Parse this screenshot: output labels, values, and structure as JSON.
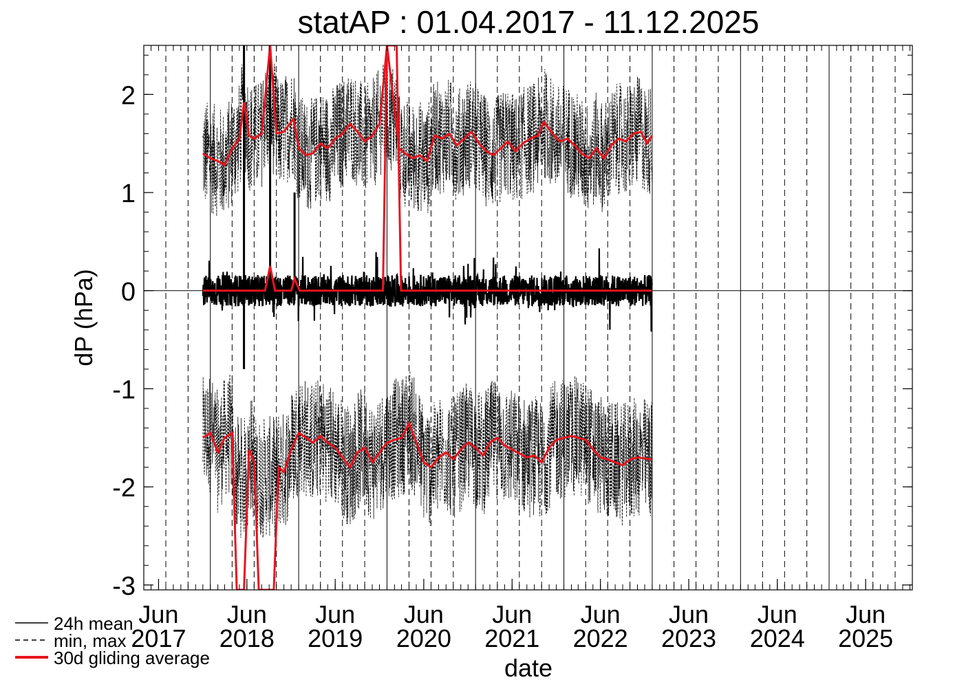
{
  "chart_data": {
    "type": "line",
    "title": "statAP : 01.04.2017 - 11.12.2025",
    "xlabel": "date",
    "ylabel": "dP (hPa)",
    "xlim": [
      "2017-04-01",
      "2025-12-11"
    ],
    "ylim": [
      -3.05,
      2.5
    ],
    "yticks": [
      2,
      1,
      0,
      -1,
      -2,
      -3
    ],
    "xticks": [
      {
        "date": "2017-06-01",
        "month": "Jun",
        "year": "2017"
      },
      {
        "date": "2018-06-01",
        "month": "Jun",
        "year": "2018"
      },
      {
        "date": "2019-06-01",
        "month": "Jun",
        "year": "2019"
      },
      {
        "date": "2020-06-01",
        "month": "Jun",
        "year": "2020"
      },
      {
        "date": "2021-06-01",
        "month": "Jun",
        "year": "2021"
      },
      {
        "date": "2022-06-01",
        "month": "Jun",
        "year": "2022"
      },
      {
        "date": "2023-06-01",
        "month": "Jun",
        "year": "2023"
      },
      {
        "date": "2024-06-01",
        "month": "Jun",
        "year": "2024"
      },
      {
        "date": "2025-06-01",
        "month": "Jun",
        "year": "2025"
      }
    ],
    "grid": "vertical: solid at year boundaries, dashed at quarter boundaries",
    "legend_position": "bottom-left",
    "legend": [
      {
        "label": "24h mean",
        "style": "solid",
        "color": "#000000"
      },
      {
        "label": "min, max",
        "style": "dashed",
        "color": "#000000"
      },
      {
        "label": "30d gliding average",
        "style": "solid-thick",
        "color": "#e8141e"
      }
    ],
    "data_range": [
      "2017-12-01",
      "2022-12-31"
    ],
    "series": [
      {
        "label_ref": "30d gliding average (max)",
        "color": "#e8141e",
        "points": [
          [
            "2017-12-01",
            1.4
          ],
          [
            "2018-01-01",
            1.35
          ],
          [
            "2018-02-01",
            1.32
          ],
          [
            "2018-03-01",
            1.28
          ],
          [
            "2018-04-01",
            1.45
          ],
          [
            "2018-05-01",
            1.55
          ],
          [
            "2018-05-20",
            1.92
          ],
          [
            "2018-06-10",
            1.58
          ],
          [
            "2018-07-01",
            1.55
          ],
          [
            "2018-08-01",
            1.6
          ],
          [
            "2018-09-05",
            2.5
          ],
          [
            "2018-10-01",
            1.6
          ],
          [
            "2018-11-01",
            1.62
          ],
          [
            "2018-12-10",
            1.75
          ],
          [
            "2019-01-01",
            1.45
          ],
          [
            "2019-02-01",
            1.38
          ],
          [
            "2019-03-01",
            1.4
          ],
          [
            "2019-04-01",
            1.5
          ],
          [
            "2019-05-01",
            1.45
          ],
          [
            "2019-06-01",
            1.55
          ],
          [
            "2019-07-01",
            1.6
          ],
          [
            "2019-08-01",
            1.7
          ],
          [
            "2019-09-01",
            1.62
          ],
          [
            "2019-10-01",
            1.52
          ],
          [
            "2019-11-01",
            1.58
          ],
          [
            "2019-12-01",
            1.7
          ],
          [
            "2020-01-01",
            2.5
          ],
          [
            "2020-02-20",
            1.45
          ],
          [
            "2020-03-15",
            1.4
          ],
          [
            "2020-04-15",
            1.35
          ],
          [
            "2020-05-15",
            1.38
          ],
          [
            "2020-06-15",
            1.32
          ],
          [
            "2020-07-15",
            1.58
          ],
          [
            "2020-08-15",
            1.55
          ],
          [
            "2020-09-15",
            1.6
          ],
          [
            "2020-10-15",
            1.48
          ],
          [
            "2020-11-15",
            1.55
          ],
          [
            "2020-12-15",
            1.62
          ],
          [
            "2021-01-15",
            1.5
          ],
          [
            "2021-02-15",
            1.42
          ],
          [
            "2021-03-15",
            1.38
          ],
          [
            "2021-04-15",
            1.45
          ],
          [
            "2021-05-15",
            1.52
          ],
          [
            "2021-06-15",
            1.42
          ],
          [
            "2021-07-15",
            1.5
          ],
          [
            "2021-08-15",
            1.55
          ],
          [
            "2021-09-15",
            1.58
          ],
          [
            "2021-10-10",
            1.72
          ],
          [
            "2021-11-15",
            1.6
          ],
          [
            "2021-12-15",
            1.52
          ],
          [
            "2022-01-15",
            1.55
          ],
          [
            "2022-02-15",
            1.48
          ],
          [
            "2022-03-15",
            1.4
          ],
          [
            "2022-04-15",
            1.35
          ],
          [
            "2022-05-15",
            1.45
          ],
          [
            "2022-06-15",
            1.35
          ],
          [
            "2022-07-15",
            1.48
          ],
          [
            "2022-08-15",
            1.55
          ],
          [
            "2022-09-15",
            1.52
          ],
          [
            "2022-10-15",
            1.6
          ],
          [
            "2022-11-15",
            1.62
          ],
          [
            "2022-12-10",
            1.5
          ],
          [
            "2022-12-31",
            1.58
          ]
        ]
      },
      {
        "label_ref": "30d gliding average (mean)",
        "color": "#e8141e",
        "points": [
          [
            "2017-12-01",
            0.0
          ],
          [
            "2018-08-15",
            0.0
          ],
          [
            "2018-09-05",
            0.25
          ],
          [
            "2018-09-25",
            0.0
          ],
          [
            "2018-12-01",
            0.0
          ],
          [
            "2018-12-15",
            0.12
          ],
          [
            "2019-01-05",
            0.0
          ],
          [
            "2019-12-15",
            0.0
          ],
          [
            "2020-01-01",
            2.5
          ],
          [
            "2020-02-10",
            2.5
          ],
          [
            "2020-02-28",
            0.0
          ],
          [
            "2022-12-31",
            0.0
          ]
        ]
      },
      {
        "label_ref": "30d gliding average (min)",
        "color": "#e8141e",
        "points": [
          [
            "2017-12-01",
            -1.5
          ],
          [
            "2018-01-01",
            -1.45
          ],
          [
            "2018-02-01",
            -1.65
          ],
          [
            "2018-03-01",
            -1.5
          ],
          [
            "2018-04-01",
            -1.45
          ],
          [
            "2018-04-20",
            -3.05
          ],
          [
            "2018-05-20",
            -3.05
          ],
          [
            "2018-06-10",
            -1.62
          ],
          [
            "2018-07-01",
            -1.75
          ],
          [
            "2018-07-20",
            -3.05
          ],
          [
            "2018-09-20",
            -3.05
          ],
          [
            "2018-10-10",
            -1.8
          ],
          [
            "2018-11-01",
            -1.85
          ],
          [
            "2018-12-01",
            -1.62
          ],
          [
            "2019-01-01",
            -1.45
          ],
          [
            "2019-02-01",
            -1.5
          ],
          [
            "2019-03-01",
            -1.55
          ],
          [
            "2019-04-01",
            -1.48
          ],
          [
            "2019-05-01",
            -1.55
          ],
          [
            "2019-06-01",
            -1.6
          ],
          [
            "2019-07-01",
            -1.7
          ],
          [
            "2019-08-01",
            -1.8
          ],
          [
            "2019-09-01",
            -1.65
          ],
          [
            "2019-10-01",
            -1.6
          ],
          [
            "2019-11-01",
            -1.75
          ],
          [
            "2019-12-01",
            -1.65
          ],
          [
            "2020-01-01",
            -1.55
          ],
          [
            "2020-02-01",
            -1.52
          ],
          [
            "2020-03-01",
            -1.5
          ],
          [
            "2020-04-01",
            -1.35
          ],
          [
            "2020-05-01",
            -1.55
          ],
          [
            "2020-06-01",
            -1.75
          ],
          [
            "2020-07-01",
            -1.8
          ],
          [
            "2020-08-01",
            -1.7
          ],
          [
            "2020-09-01",
            -1.65
          ],
          [
            "2020-10-01",
            -1.72
          ],
          [
            "2020-11-01",
            -1.62
          ],
          [
            "2020-12-01",
            -1.55
          ],
          [
            "2021-01-01",
            -1.6
          ],
          [
            "2021-02-01",
            -1.68
          ],
          [
            "2021-03-01",
            -1.55
          ],
          [
            "2021-04-01",
            -1.5
          ],
          [
            "2021-05-01",
            -1.58
          ],
          [
            "2021-06-01",
            -1.62
          ],
          [
            "2021-07-01",
            -1.66
          ],
          [
            "2021-08-01",
            -1.7
          ],
          [
            "2021-09-01",
            -1.68
          ],
          [
            "2021-10-01",
            -1.75
          ],
          [
            "2021-11-01",
            -1.6
          ],
          [
            "2021-12-01",
            -1.52
          ],
          [
            "2022-01-01",
            -1.5
          ],
          [
            "2022-02-01",
            -1.48
          ],
          [
            "2022-03-01",
            -1.5
          ],
          [
            "2022-04-01",
            -1.52
          ],
          [
            "2022-05-01",
            -1.62
          ],
          [
            "2022-06-01",
            -1.7
          ],
          [
            "2022-07-01",
            -1.72
          ],
          [
            "2022-08-01",
            -1.75
          ],
          [
            "2022-09-01",
            -1.78
          ],
          [
            "2022-10-01",
            -1.72
          ],
          [
            "2022-11-01",
            -1.7
          ],
          [
            "2022-12-31",
            -1.72
          ]
        ]
      }
    ],
    "spikes_24h": [
      {
        "date": "2018-05-20",
        "low": -0.8,
        "high": 2.5
      },
      {
        "date": "2018-09-05",
        "low": -0.1,
        "high": 2.5
      },
      {
        "date": "2018-12-15",
        "low": -0.1,
        "high": 1.0
      }
    ]
  }
}
